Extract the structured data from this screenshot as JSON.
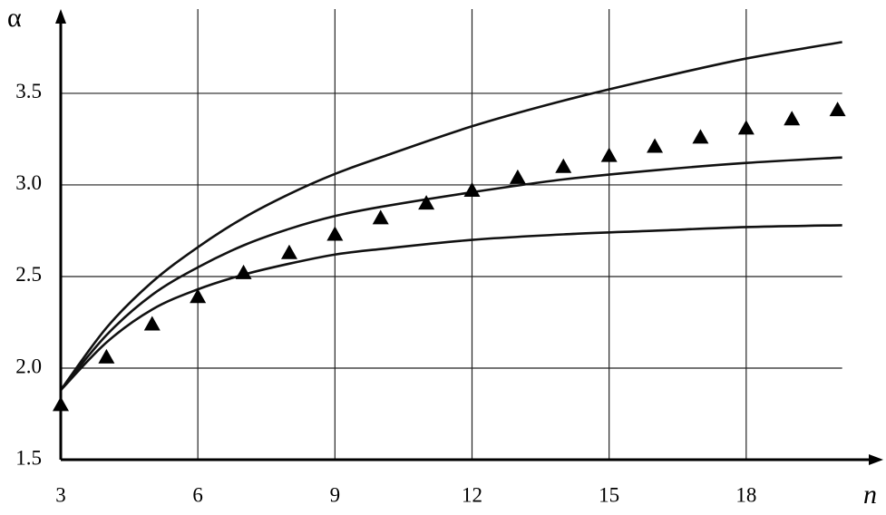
{
  "chart_data": {
    "type": "line",
    "x_label": "n",
    "y_label": "α",
    "xlim": [
      3,
      21
    ],
    "ylim": [
      1.5,
      3.96
    ],
    "xticks": [
      3,
      6,
      9,
      12,
      15,
      18
    ],
    "yticks": [
      1.5,
      {
        "value": 2,
        "label": "2.0"
      },
      2.5,
      {
        "value": 3,
        "label": "3.0"
      },
      3.5
    ],
    "grid": true,
    "series": [
      {
        "style": "line",
        "color": "#111111",
        "x": [
          3,
          4,
          5,
          6,
          7,
          8,
          9,
          10,
          12,
          14,
          16,
          18,
          20.1
        ],
        "values": [
          1.88,
          2.22,
          2.47,
          2.66,
          2.82,
          2.95,
          3.06,
          3.15,
          3.32,
          3.46,
          3.58,
          3.69,
          3.78
        ]
      },
      {
        "style": "line",
        "color": "#111111",
        "x": [
          3,
          4,
          5,
          6,
          7,
          8,
          9,
          10,
          12,
          14,
          16,
          18,
          20.1
        ],
        "values": [
          1.88,
          2.18,
          2.4,
          2.55,
          2.67,
          2.76,
          2.83,
          2.88,
          2.96,
          3.03,
          3.08,
          3.12,
          3.15
        ]
      },
      {
        "style": "line",
        "color": "#111111",
        "x": [
          3,
          4,
          5,
          6,
          7,
          8,
          9,
          10,
          12,
          14,
          16,
          18,
          20.1
        ],
        "values": [
          1.88,
          2.14,
          2.32,
          2.43,
          2.51,
          2.57,
          2.62,
          2.65,
          2.7,
          2.73,
          2.75,
          2.77,
          2.78
        ]
      },
      {
        "style": "triangle",
        "color": "#000000",
        "x": [
          3,
          4,
          5,
          6,
          7,
          8,
          9,
          10,
          11,
          12,
          13,
          14,
          15,
          16,
          17,
          18,
          19,
          20
        ],
        "values": [
          1.8,
          2.06,
          2.24,
          2.39,
          2.52,
          2.63,
          2.73,
          2.82,
          2.9,
          2.97,
          3.04,
          3.1,
          3.16,
          3.21,
          3.26,
          3.31,
          3.36,
          3.41
        ]
      }
    ]
  }
}
